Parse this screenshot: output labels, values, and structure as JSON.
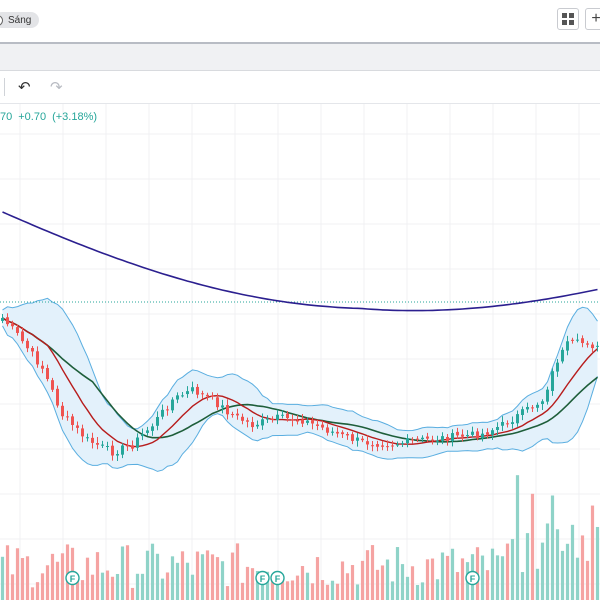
{
  "topbar": {
    "theme_label": "Sáng",
    "layout_icon": "grid-icon",
    "add_icon": "plus-icon",
    "add_label": "+"
  },
  "toolbar": {
    "undo_icon": "undo-icon",
    "undo_glyph": "↶",
    "redo_icon": "redo-icon",
    "redo_glyph": "↷"
  },
  "legend": {
    "close_fragment": "70",
    "change": "+0.70",
    "change_percent": "(+3.18%)",
    "color": "#26a69a"
  },
  "chart_data": {
    "type": "candlestick",
    "candles_shown": 120,
    "colors": {
      "up": "#26a69a",
      "down": "#ef5350",
      "ma_long": "#2b1f8f",
      "ma_mid": "#1e5e3a",
      "bb_basis": "#b71c1c",
      "bb_band": "#5aaee0"
    },
    "indicators": [
      "Bollinger Bands",
      "Moving Average",
      "Moving Average",
      "Moving Average"
    ],
    "volume": true,
    "markers": [
      {
        "label": "F",
        "candle": 14
      },
      {
        "label": "F",
        "candle": 52
      },
      {
        "label": "F",
        "candle": 55
      },
      {
        "label": "F",
        "candle": 94
      }
    ],
    "grid": true
  }
}
